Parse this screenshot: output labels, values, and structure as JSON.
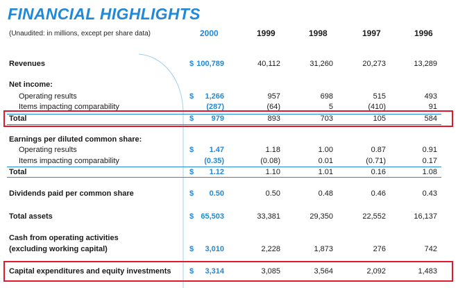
{
  "title": "FINANCIAL HIGHLIGHTS",
  "subtitle": "(Unaudited: in millions, except per share data)",
  "years": [
    "2000",
    "1999",
    "1998",
    "1997",
    "1996"
  ],
  "colors": {
    "accent": "#2288d8",
    "highlight": "#e0182e"
  },
  "rows": {
    "revenues": {
      "label": "Revenues",
      "dollar": "$",
      "values": [
        "100,789",
        "40,112",
        "31,260",
        "20,273",
        "13,289"
      ]
    },
    "net_income": {
      "label": "Net income:"
    },
    "ni_operating": {
      "label": "Operating results",
      "dollar": "$",
      "values": [
        "1,266",
        "957",
        "698",
        "515",
        "493"
      ]
    },
    "ni_items": {
      "label": "Items impacting comparability",
      "values": [
        "(287)",
        "(64)",
        "5",
        "(410)",
        "91"
      ]
    },
    "ni_total": {
      "label": "Total",
      "dollar": "$",
      "values": [
        "979",
        "893",
        "703",
        "105",
        "584"
      ]
    },
    "eps": {
      "label": "Earnings per diluted common share:"
    },
    "eps_operating": {
      "label": "Operating results",
      "dollar": "$",
      "values": [
        "1.47",
        "1.18",
        "1.00",
        "0.87",
        "0.91"
      ]
    },
    "eps_items": {
      "label": "Items impacting comparability",
      "values": [
        "(0.35)",
        "(0.08)",
        "0.01",
        "(0.71)",
        "0.17"
      ]
    },
    "eps_total": {
      "label": "Total",
      "dollar": "$",
      "values": [
        "1.12",
        "1.10",
        "1.01",
        "0.16",
        "1.08"
      ]
    },
    "dividends": {
      "label": "Dividends paid per common share",
      "dollar": "$",
      "values": [
        "0.50",
        "0.50",
        "0.48",
        "0.46",
        "0.43"
      ]
    },
    "assets": {
      "label": "Total assets",
      "dollar": "$",
      "values": [
        "65,503",
        "33,381",
        "29,350",
        "22,552",
        "16,137"
      ]
    },
    "cash_ops": {
      "label": "Cash from operating activities",
      "label2": "(excluding working capital)",
      "dollar": "$",
      "values": [
        "3,010",
        "2,228",
        "1,873",
        "276",
        "742"
      ]
    },
    "capex": {
      "label": "Capital expenditures and equity investments",
      "dollar": "$",
      "values": [
        "3,314",
        "3,085",
        "3,564",
        "2,092",
        "1,483"
      ]
    }
  }
}
